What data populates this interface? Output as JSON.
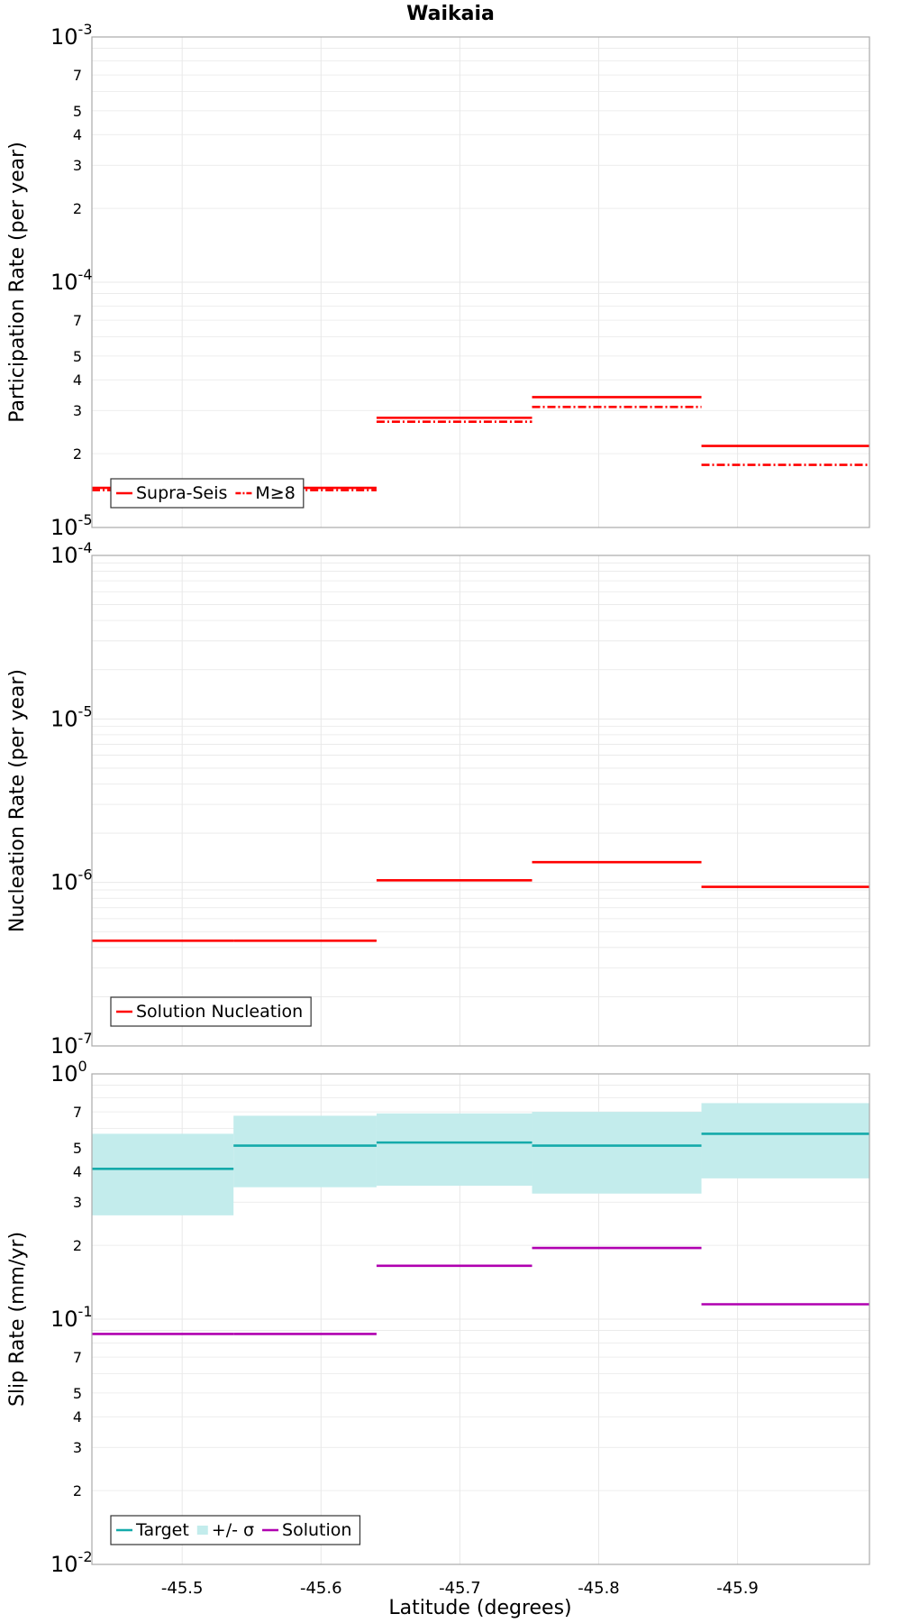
{
  "title": "Waikaia",
  "xlabel": "Latitude (degrees)",
  "x_axis": {
    "range": [
      -45.435,
      -45.995
    ],
    "reversed": true,
    "ticks": [
      -45.5,
      -45.6,
      -45.7,
      -45.8,
      -45.9
    ],
    "tick_labels": [
      "-45.5",
      "-45.6",
      "-45.7",
      "-45.8",
      "-45.9"
    ]
  },
  "colors": {
    "supra_seis": "#ff0000",
    "target": "#14aaaa",
    "sigma_band": "#c3ecec",
    "solution": "#b000b0",
    "frame": "#aaaaaa",
    "grid": "#e8e8e8"
  },
  "chart_data": [
    {
      "type": "line",
      "name": "participation",
      "ylabel": "Participation Rate (per year)",
      "yscale": "log",
      "ylim": [
        1e-05,
        0.001
      ],
      "major_ticks": [
        {
          "base": "10",
          "exp": "-5",
          "value": 1e-05
        },
        {
          "base": "10",
          "exp": "-4",
          "value": 0.0001
        },
        {
          "base": "10",
          "exp": "-3",
          "value": 0.001
        }
      ],
      "minor_labels": [
        "2",
        "3",
        "4",
        "5",
        "7"
      ],
      "legend": {
        "position": "bottom-left",
        "entries": [
          "Supra-Seis",
          "M≥8"
        ]
      },
      "series": [
        {
          "name": "Supra-Seis",
          "style": "solid",
          "color": "#ff0000",
          "steps": [
            {
              "x": [
                -45.435,
                -45.537
              ],
              "y": 1.45e-05
            },
            {
              "x": [
                -45.537,
                -45.64
              ],
              "y": 1.45e-05
            },
            {
              "x": [
                -45.64,
                -45.752
              ],
              "y": 2.8e-05
            },
            {
              "x": [
                -45.752,
                -45.874
              ],
              "y": 3.4e-05
            },
            {
              "x": [
                -45.874,
                -45.995
              ],
              "y": 2.15e-05
            }
          ]
        },
        {
          "name": "M≥8",
          "style": "dashdot",
          "color": "#ff0000",
          "steps": [
            {
              "x": [
                -45.435,
                -45.537
              ],
              "y": 1.42e-05
            },
            {
              "x": [
                -45.537,
                -45.64
              ],
              "y": 1.42e-05
            },
            {
              "x": [
                -45.64,
                -45.752
              ],
              "y": 2.7e-05
            },
            {
              "x": [
                -45.752,
                -45.874
              ],
              "y": 3.1e-05
            },
            {
              "x": [
                -45.874,
                -45.995
              ],
              "y": 1.8e-05
            }
          ]
        }
      ]
    },
    {
      "type": "line",
      "name": "nucleation",
      "ylabel": "Nucleation Rate (per year)",
      "yscale": "log",
      "ylim": [
        1e-07,
        0.0001
      ],
      "major_ticks": [
        {
          "base": "10",
          "exp": "-7",
          "value": 1e-07
        },
        {
          "base": "10",
          "exp": "-6",
          "value": 1e-06
        },
        {
          "base": "10",
          "exp": "-5",
          "value": 1e-05
        },
        {
          "base": "10",
          "exp": "-4",
          "value": 0.0001
        }
      ],
      "minor_labels": [],
      "legend": {
        "position": "bottom-left",
        "entries": [
          "Solution Nucleation"
        ]
      },
      "series": [
        {
          "name": "Solution Nucleation",
          "style": "solid",
          "color": "#ff0000",
          "steps": [
            {
              "x": [
                -45.435,
                -45.537
              ],
              "y": 4.4e-07
            },
            {
              "x": [
                -45.537,
                -45.64
              ],
              "y": 4.4e-07
            },
            {
              "x": [
                -45.64,
                -45.752
              ],
              "y": 1.03e-06
            },
            {
              "x": [
                -45.752,
                -45.874
              ],
              "y": 1.33e-06
            },
            {
              "x": [
                -45.874,
                -45.995
              ],
              "y": 9.4e-07
            }
          ]
        }
      ]
    },
    {
      "type": "line",
      "name": "slip",
      "ylabel": "Slip Rate (mm/yr)",
      "yscale": "log",
      "ylim": [
        0.01,
        1
      ],
      "major_ticks": [
        {
          "base": "10",
          "exp": "-2",
          "value": 0.01
        },
        {
          "base": "10",
          "exp": "-1",
          "value": 0.1
        },
        {
          "base": "10",
          "exp": "0",
          "value": 1
        }
      ],
      "minor_labels": [
        "2",
        "3",
        "4",
        "5",
        "7"
      ],
      "legend": {
        "position": "bottom-left",
        "entries": [
          "Target",
          "+/- σ",
          "Solution"
        ]
      },
      "bands": [
        {
          "name": "+/- σ",
          "color": "#c3ecec",
          "steps": [
            {
              "x": [
                -45.435,
                -45.537
              ],
              "lo": 0.265,
              "hi": 0.57
            },
            {
              "x": [
                -45.537,
                -45.64
              ],
              "lo": 0.345,
              "hi": 0.675
            },
            {
              "x": [
                -45.64,
                -45.752
              ],
              "lo": 0.35,
              "hi": 0.69
            },
            {
              "x": [
                -45.752,
                -45.874
              ],
              "lo": 0.325,
              "hi": 0.7
            },
            {
              "x": [
                -45.874,
                -45.995
              ],
              "lo": 0.375,
              "hi": 0.76
            }
          ]
        }
      ],
      "series": [
        {
          "name": "Target",
          "style": "solid",
          "color": "#14aaaa",
          "steps": [
            {
              "x": [
                -45.435,
                -45.537
              ],
              "y": 0.41
            },
            {
              "x": [
                -45.537,
                -45.64
              ],
              "y": 0.51
            },
            {
              "x": [
                -45.64,
                -45.752
              ],
              "y": 0.525
            },
            {
              "x": [
                -45.752,
                -45.874
              ],
              "y": 0.51
            },
            {
              "x": [
                -45.874,
                -45.995
              ],
              "y": 0.57
            }
          ]
        },
        {
          "name": "Solution",
          "style": "solid",
          "color": "#b000b0",
          "steps": [
            {
              "x": [
                -45.435,
                -45.537
              ],
              "y": 0.087
            },
            {
              "x": [
                -45.537,
                -45.64
              ],
              "y": 0.087
            },
            {
              "x": [
                -45.64,
                -45.752
              ],
              "y": 0.165
            },
            {
              "x": [
                -45.752,
                -45.874
              ],
              "y": 0.195
            },
            {
              "x": [
                -45.874,
                -45.995
              ],
              "y": 0.115
            }
          ]
        }
      ]
    }
  ]
}
